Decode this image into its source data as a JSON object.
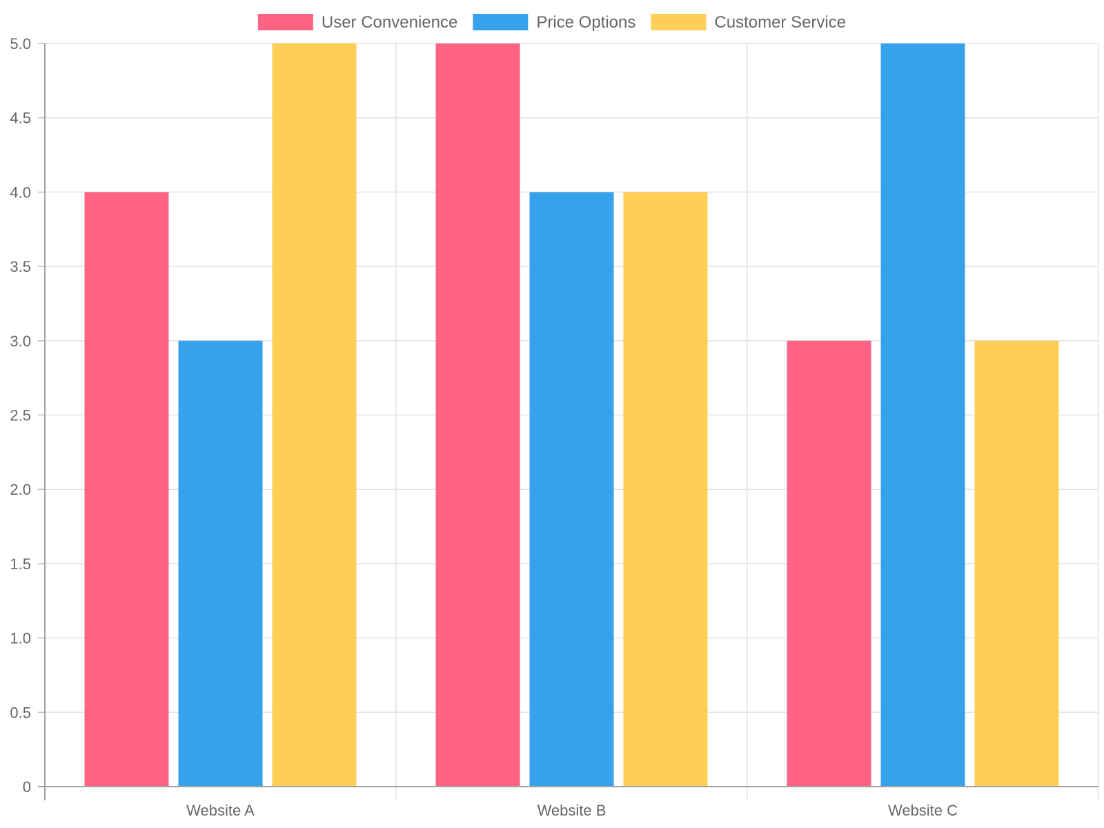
{
  "chart_data": {
    "type": "bar",
    "title": "",
    "xlabel": "",
    "ylabel": "",
    "categories": [
      "Website A",
      "Website B",
      "Website C"
    ],
    "series": [
      {
        "name": "User Convenience",
        "values": [
          4,
          5,
          3
        ],
        "color": "#FF6384"
      },
      {
        "name": "Price Options",
        "values": [
          3,
          4,
          5
        ],
        "color": "#36A2EB"
      },
      {
        "name": "Customer Service",
        "values": [
          5,
          4,
          3
        ],
        "color": "#FFCE56"
      }
    ],
    "ylim": [
      0,
      5
    ],
    "y_ticks": [
      "0",
      "0.5",
      "1.0",
      "1.5",
      "2.0",
      "2.5",
      "3.0",
      "3.5",
      "4.0",
      "4.5",
      "5.0"
    ],
    "grid": true,
    "legend_position": "top"
  }
}
